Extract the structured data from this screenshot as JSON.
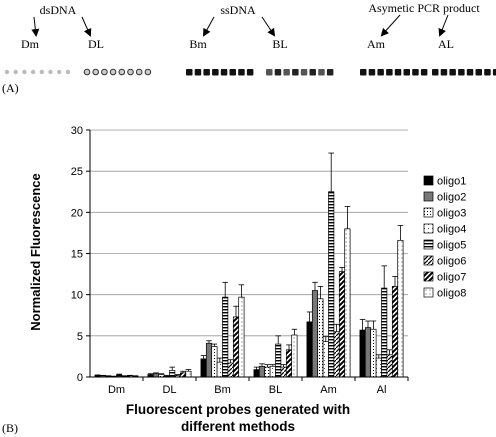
{
  "panel_a": {
    "label": "(A)",
    "groups": [
      {
        "name": "dsDNA",
        "left": "Dm",
        "right": "DL"
      },
      {
        "name": "ssDNA",
        "left": "Bm",
        "right": "BL"
      },
      {
        "name": "Asymetic PCR product",
        "left": "Am",
        "right": "AL"
      }
    ],
    "spot_style": {
      "Dm": "faint",
      "DL": "ring",
      "Bm": "solid",
      "BL": "mixed",
      "Am": "solid",
      "AL": "solid"
    }
  },
  "panel_b": {
    "label": "(B)"
  },
  "colors": {
    "oligo1": "#000000",
    "oligo2": "#777777",
    "oligo3": "#ffffff",
    "oligo4": "#ffffff",
    "oligo5": "#777777",
    "oligo6": "#ffffff",
    "oligo7": "#1a1a1a",
    "oligo8": "#ffffff",
    "gridline": "#999999"
  },
  "chart_data": {
    "type": "bar",
    "categories": [
      "Dm",
      "DL",
      "Bm",
      "BL",
      "Am",
      "Al"
    ],
    "xlabel": "Fluorescent probes generated with different methods",
    "xlabel_lines": [
      "Fluorescent probes generated with",
      "different methods"
    ],
    "ylabel": "Normalized Fluorescence",
    "ylim": [
      0,
      30
    ],
    "yticks": [
      0,
      5,
      10,
      15,
      20,
      25,
      30
    ],
    "grid": true,
    "legend": "right",
    "series": [
      {
        "name": "oligo1",
        "values": [
          0.2,
          0.3,
          2.2,
          0.9,
          6.7,
          5.7
        ],
        "errors": [
          0.05,
          0.1,
          0.4,
          0.3,
          1.2,
          1.3
        ]
      },
      {
        "name": "oligo2",
        "values": [
          0.15,
          0.4,
          4.1,
          1.3,
          10.5,
          6.0
        ],
        "errors": [
          0.05,
          0.1,
          0.3,
          0.3,
          1.0,
          0.8
        ]
      },
      {
        "name": "oligo3",
        "values": [
          0.1,
          0.3,
          3.7,
          1.2,
          9.5,
          5.8
        ],
        "errors": [
          0.05,
          0.1,
          0.3,
          0.3,
          1.5,
          1.0
        ]
      },
      {
        "name": "oligo4",
        "values": [
          0.05,
          0.1,
          1.8,
          1.3,
          4.3,
          2.3
        ],
        "errors": [
          0.05,
          0.1,
          0.5,
          0.2,
          0.6,
          0.4
        ]
      },
      {
        "name": "oligo5",
        "values": [
          0.25,
          0.8,
          9.7,
          4.0,
          22.5,
          10.8
        ],
        "errors": [
          0.1,
          0.4,
          1.8,
          1.0,
          4.7,
          2.7
        ]
      },
      {
        "name": "oligo6",
        "values": [
          0.1,
          0.2,
          1.7,
          1.2,
          5.5,
          2.7
        ],
        "errors": [
          0.05,
          0.1,
          0.4,
          0.3,
          0.9,
          0.6
        ]
      },
      {
        "name": "oligo7",
        "values": [
          0.15,
          0.5,
          7.3,
          3.3,
          12.8,
          11.0
        ],
        "errors": [
          0.05,
          0.2,
          1.3,
          0.6,
          0.5,
          1.2
        ]
      },
      {
        "name": "oligo8",
        "values": [
          0.1,
          0.7,
          9.7,
          5.1,
          18.0,
          16.6
        ],
        "errors": [
          0.05,
          0.2,
          1.5,
          0.7,
          2.7,
          1.8
        ]
      }
    ]
  }
}
